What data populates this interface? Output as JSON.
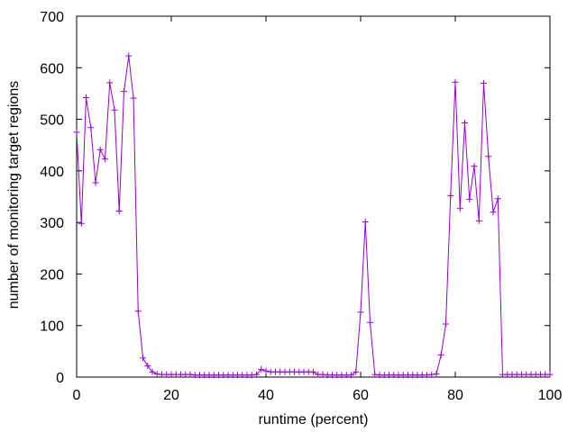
{
  "chart_data": {
    "type": "line",
    "title": "",
    "xlabel": "runtime (percent)",
    "ylabel": "number of monitoring target regions",
    "xlim": [
      0,
      100
    ],
    "ylim": [
      0,
      700
    ],
    "xticks": [
      0,
      20,
      40,
      60,
      80,
      100
    ],
    "yticks": [
      0,
      100,
      200,
      300,
      400,
      500,
      600,
      700
    ],
    "grid": false,
    "legend": "none",
    "series": [
      {
        "color": "#9400d3",
        "marker": "+",
        "x": [
          0,
          1,
          2,
          3,
          4,
          5,
          6,
          7,
          8,
          9,
          10,
          11,
          12,
          13,
          14,
          15,
          16,
          17,
          18,
          19,
          20,
          21,
          22,
          23,
          24,
          25,
          26,
          27,
          28,
          29,
          30,
          31,
          32,
          33,
          34,
          35,
          36,
          37,
          38,
          39,
          40,
          41,
          42,
          43,
          44,
          45,
          46,
          47,
          48,
          49,
          50,
          51,
          52,
          53,
          54,
          55,
          56,
          57,
          58,
          59,
          60,
          61,
          62,
          63,
          64,
          65,
          66,
          67,
          68,
          69,
          70,
          71,
          72,
          73,
          74,
          75,
          76,
          77,
          78,
          79,
          80,
          81,
          82,
          83,
          84,
          85,
          86,
          87,
          88,
          89,
          90,
          91,
          92,
          93,
          94,
          95,
          96,
          97,
          98,
          99,
          100
        ],
        "y": [
          475,
          298,
          542,
          484,
          377,
          441,
          423,
          571,
          518,
          322,
          554,
          623,
          541,
          128,
          37,
          22,
          10,
          6,
          5,
          5,
          5,
          5,
          5,
          5,
          5,
          4,
          4,
          4,
          4,
          4,
          4,
          4,
          4,
          4,
          4,
          4,
          4,
          4,
          5,
          15,
          12,
          10,
          10,
          10,
          10,
          10,
          10,
          10,
          10,
          10,
          10,
          5,
          5,
          4,
          4,
          4,
          4,
          4,
          4,
          10,
          126,
          301,
          106,
          5,
          4,
          4,
          4,
          4,
          4,
          4,
          4,
          4,
          4,
          4,
          4,
          5,
          6,
          43,
          103,
          352,
          572,
          327,
          493,
          345,
          409,
          303,
          570,
          428,
          320,
          346,
          5,
          5,
          5,
          5,
          5,
          5,
          5,
          5,
          5,
          5,
          5
        ]
      }
    ]
  }
}
